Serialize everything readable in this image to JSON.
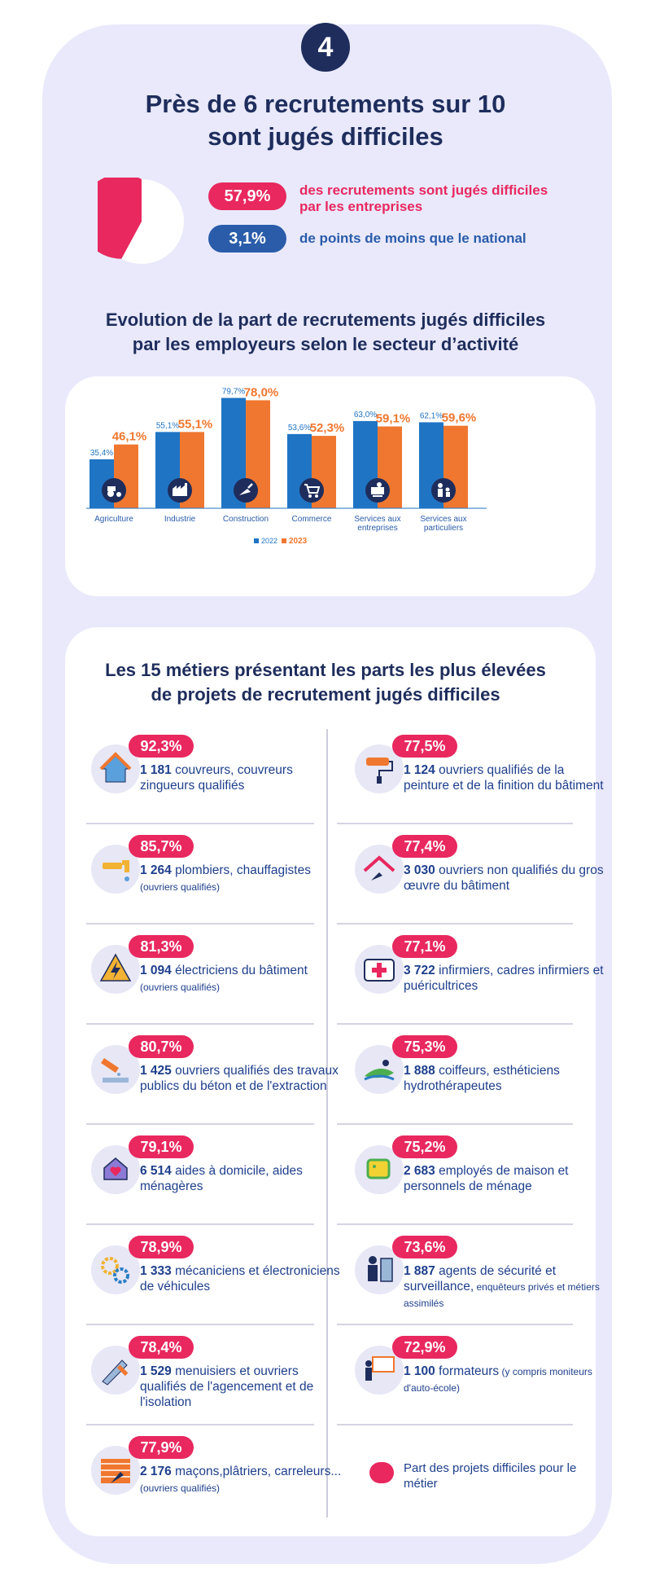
{
  "badge": "4",
  "title_line1": "Près de 6 recrutements sur 10",
  "title_line2": "sont jugés difficiles",
  "stat1": {
    "value": "57,9%",
    "text_line1": "des recrutements sont jugés difficiles",
    "text_line2": "par les entreprises",
    "color": "#e8285f",
    "fraction": 0.579
  },
  "stat2": {
    "value": "3,1%",
    "text": "de points de moins que le national",
    "color": "#2a5caa"
  },
  "chart_title_line1": "Evolution de la part de recrutements jugés difficiles",
  "chart_title_line2": "par les employeurs selon le secteur d’activité",
  "chart_data": {
    "type": "bar",
    "categories": [
      "Agriculture",
      "Industrie",
      "Construction",
      "Commerce",
      "Services aux entreprises",
      "Services aux particuliers"
    ],
    "category_lines": [
      [
        "Agriculture"
      ],
      [
        "Industrie"
      ],
      [
        "Construction"
      ],
      [
        "Commerce"
      ],
      [
        "Services aux",
        "entreprises"
      ],
      [
        "Services aux",
        "particuliers"
      ]
    ],
    "series": [
      {
        "name": "2022",
        "values": [
          35.4,
          55.1,
          79.7,
          53.6,
          63.0,
          62.1
        ],
        "labels": [
          "35,4%",
          "55,1%",
          "79,7%",
          "53,6%",
          "63,0%",
          "62,1%"
        ],
        "color": "#1f74c4"
      },
      {
        "name": "2023",
        "values": [
          46.1,
          55.1,
          78.0,
          52.3,
          59.1,
          59.6
        ],
        "labels": [
          "46,1%",
          "55,1%",
          "78,0%",
          "52,3%",
          "59,1%",
          "59,6%"
        ],
        "color": "#f0772f"
      }
    ],
    "icons": [
      "tractor-icon",
      "factory-icon",
      "trowel-icon",
      "cart-icon",
      "office-worker-icon",
      "family-icon"
    ],
    "ylim": [
      0,
      90
    ],
    "legend_position": "bottom"
  },
  "list_title_line1": "Les 15 métiers présentant les parts les plus élevées",
  "list_title_line2": "de projets de recrutement jugés difficiles",
  "jobs": [
    {
      "pct": "92,3%",
      "count": "1 181",
      "desc": "couvreurs, couvreurs zingueurs qualifiés",
      "note": "",
      "icon": "house-roof-icon"
    },
    {
      "pct": "77,5%",
      "count": "1 124",
      "desc": "ouvriers qualifiés de la peinture et de la finition du bâtiment",
      "note": "",
      "icon": "paint-roller-icon"
    },
    {
      "pct": "85,7%",
      "count": "1 264",
      "desc": "plombiers, chauffagistes",
      "note": "(ouvriers qualifiés)",
      "icon": "faucet-icon"
    },
    {
      "pct": "77,4%",
      "count": "3 030",
      "desc": "ouvriers non qualifiés du gros œuvre du bâtiment",
      "note": "",
      "icon": "roof-trowel-icon"
    },
    {
      "pct": "81,3%",
      "count": "1 094",
      "desc": "électriciens du bâtiment",
      "note": "(ouvriers qualifiés)",
      "icon": "electric-hazard-icon"
    },
    {
      "pct": "77,1%",
      "count": "3 722",
      "desc": "infirmiers, cadres infirmiers et puéricultrices",
      "note": "",
      "icon": "medical-kit-icon"
    },
    {
      "pct": "80,7%",
      "count": "1 425",
      "desc": "ouvriers qualifiés des travaux publics du béton et de l'extraction",
      "note": "",
      "icon": "concrete-pour-icon"
    },
    {
      "pct": "75,3%",
      "count": "1 888",
      "desc": "coiffeurs, esthéticiens hydrothérapeutes",
      "note": "",
      "icon": "spa-icon"
    },
    {
      "pct": "79,1%",
      "count": "6 514",
      "desc": "aides à domicile, aides ménagères",
      "note": "",
      "icon": "home-care-icon"
    },
    {
      "pct": "75,2%",
      "count": "2 683",
      "desc": "employés de maison et personnels de ménage",
      "note": "",
      "icon": "cleaning-sponge-icon"
    },
    {
      "pct": "78,9%",
      "count": "1 333",
      "desc": "mécaniciens et électroniciens de véhicules",
      "note": "",
      "icon": "gears-icon"
    },
    {
      "pct": "73,6%",
      "count": "1 887",
      "desc": "agents de sécurité et surveillance,",
      "note": "enquêteurs privés et métiers assimilés",
      "icon": "security-guard-icon"
    },
    {
      "pct": "78,4%",
      "count": "1 529",
      "desc": "menuisiers et ouvriers qualifiés de l'agencement et de l'isolation",
      "note": "",
      "icon": "saw-hammer-icon"
    },
    {
      "pct": "72,9%",
      "count": "1 100",
      "desc": "formateurs",
      "note": "(y compris moniteurs d'auto-école)",
      "icon": "trainer-board-icon"
    },
    {
      "pct": "77,9%",
      "count": "2 176",
      "desc": "maçons,plâtriers, carreleurs...",
      "note": "(ouvriers qualifiés)",
      "icon": "brick-wall-icon"
    }
  ],
  "legend_text": "Part des projets difficiles pour le métier"
}
